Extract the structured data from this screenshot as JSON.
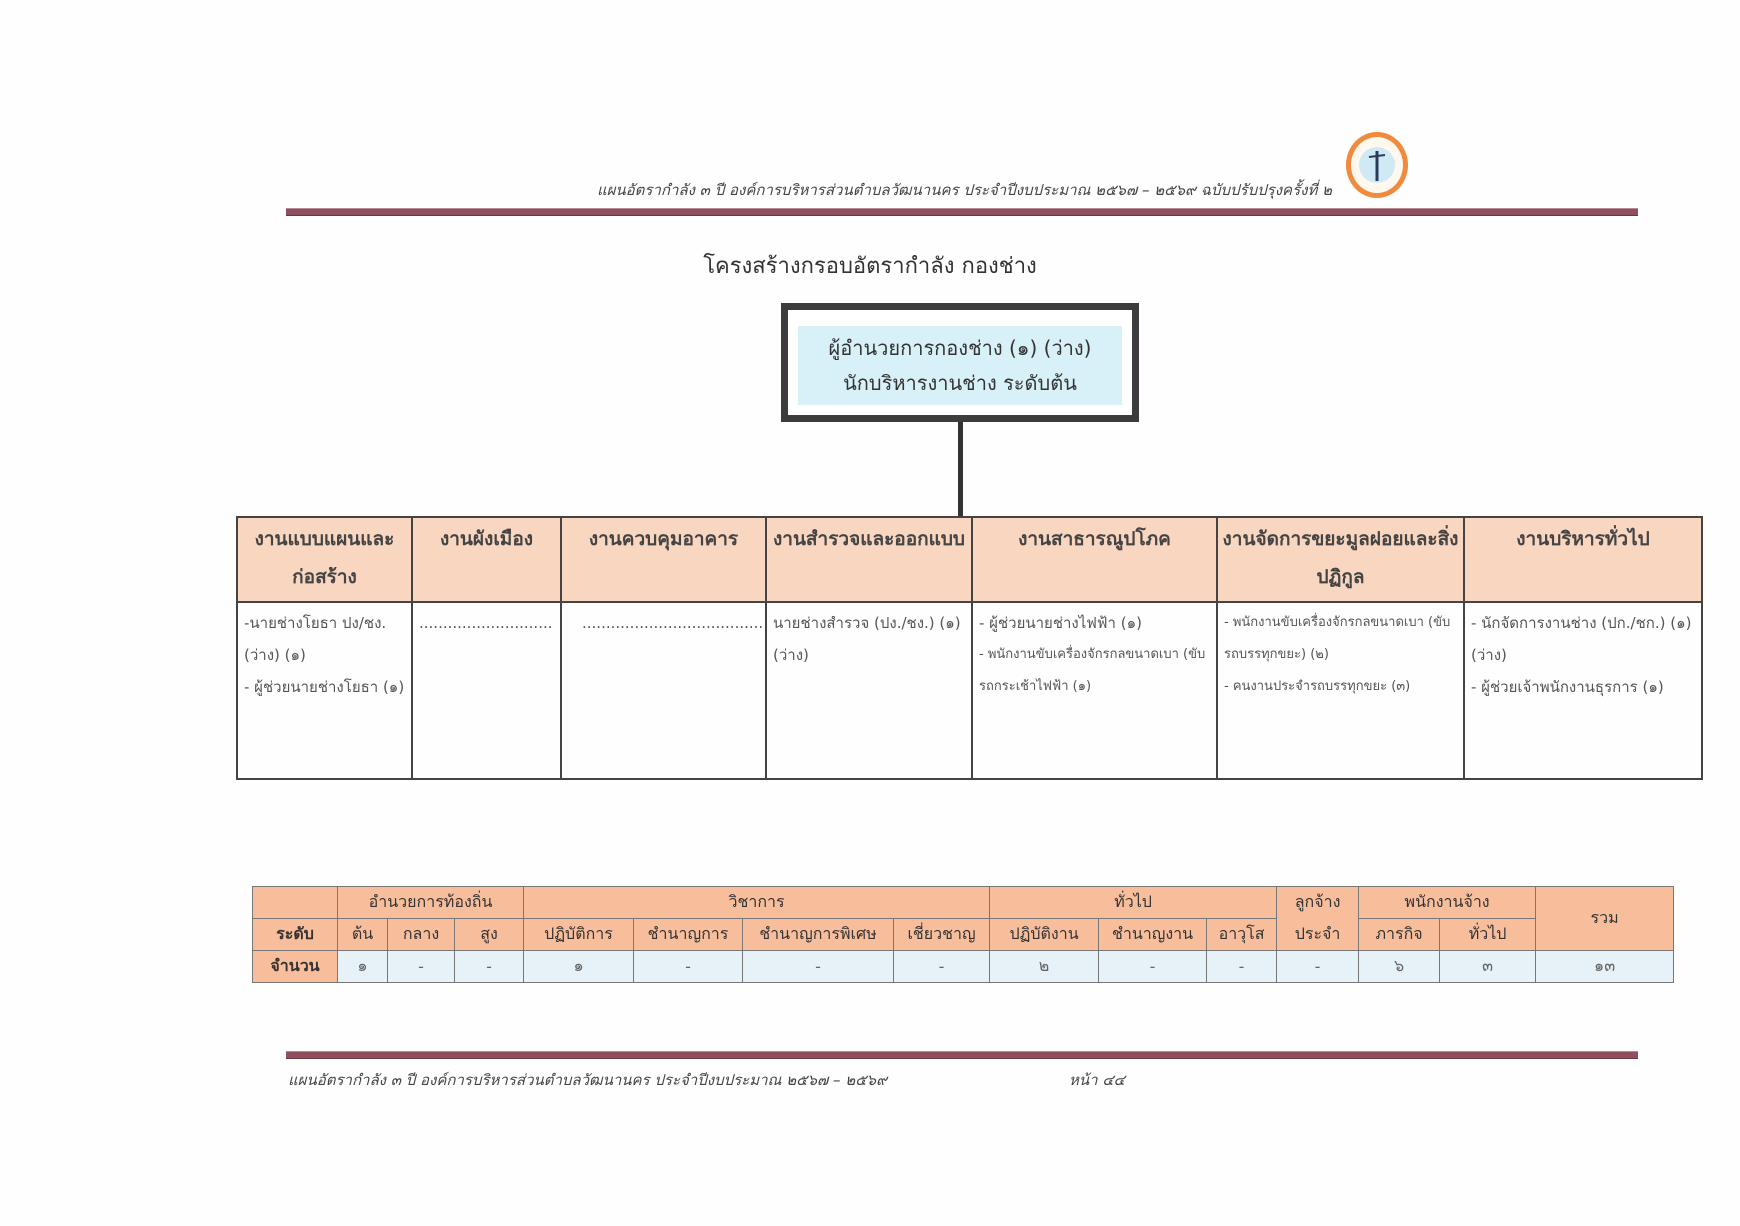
{
  "header": {
    "text": "แผนอัตรากำลัง ๓ ปี องค์การบริหารส่วนตำบลวัฒนานคร ประจำปีงบประมาณ ๒๕๖๗ – ๒๕๖๙ ฉบับปรับปรุงครั้งที่ ๒",
    "logo": "municipal-seal"
  },
  "title": "โครงสร้างกรอบอัตรากำลัง กองช่าง",
  "head_position": {
    "line1": "ผู้อำนวยการกองช่าง (๑) (ว่าง)",
    "line2": "นักบริหารงานช่าง ระดับต้น"
  },
  "units": [
    {
      "name": "งานแบบแผนและก่อสร้าง",
      "items": [
        "-นายช่างโยธา ปง/ชง. (ว่าง) (๑)",
        "- ผู้ช่วยนายช่างโยธา (๑)"
      ]
    },
    {
      "name": "งานผังเมือง",
      "items": [
        "............................"
      ]
    },
    {
      "name": "งานควบคุมอาคาร",
      "items": [
        "......................................"
      ]
    },
    {
      "name": "งานสำรวจและออกแบบ",
      "items": [
        "นายช่างสำรวจ (ปง./ชง.) (๑) (ว่าง)"
      ]
    },
    {
      "name": "งานสาธารณูปโภค",
      "items": [
        "- ผู้ช่วยนายช่างไฟฟ้า (๑)",
        "- พนักงานขับเครื่องจักรกลขนาดเบา (ขับรถกระเช้าไฟฟ้า (๑)"
      ]
    },
    {
      "name": "งานจัดการขยะมูลฝอยและสิ่งปฏิกูล",
      "items": [
        "- พนักงานขับเครื่องจักรกลขนาดเบา (ขับรถบรรทุกขยะ) (๒)",
        "- คนงานประจำรถบรรทุกขยะ (๓)"
      ]
    },
    {
      "name": "งานบริหารทั่วไป",
      "items": [
        "- นักจัดการงานช่าง (ปก./ชก.) (๑) (ว่าง)",
        "- ผู้ช่วยเจ้าพนักงานธุรการ (๑)"
      ]
    }
  ],
  "summary": {
    "level_label": "ระดับ",
    "count_label": "จำนวน",
    "groups": [
      "อำนวยการท้องถิ่น",
      "วิชาการ",
      "ทั่วไป",
      "ลูกจ้าง",
      "พนักงานจ้าง"
    ],
    "regular_label": "ประจำ",
    "total_label": "รวม",
    "levels": [
      "ต้น",
      "กลาง",
      "สูง",
      "ปฏิบัติการ",
      "ชำนาญการ",
      "ชำนาญการพิเศษ",
      "เชี่ยวชาญ",
      "ปฏิบัติงาน",
      "ชำนาญงาน",
      "อาวุโส",
      "ภารกิจ",
      "ทั่วไป"
    ],
    "counts": [
      "๑",
      "-",
      "-",
      "๑",
      "-",
      "-",
      "-",
      "๒",
      "-",
      "-",
      "-",
      "๖",
      "๓",
      "๑๓"
    ]
  },
  "footer": {
    "text": "แผนอัตรากำลัง ๓ ปี องค์การบริหารส่วนตำบลวัฒนานคร ประจำปีงบประมาณ ๒๕๖๗ – ๒๕๖๙",
    "page": "หน้า ๔๔"
  }
}
